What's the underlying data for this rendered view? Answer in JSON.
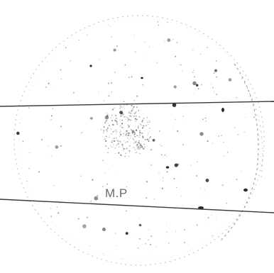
{
  "image": {
    "subject": "petri-dish",
    "label": "M.P",
    "colors": {
      "background": "#ffffff",
      "dish_outline": "#bdbdbd",
      "lines": "#3a3a3a",
      "speckle": "#555555",
      "label": "#6b6b6b"
    }
  }
}
